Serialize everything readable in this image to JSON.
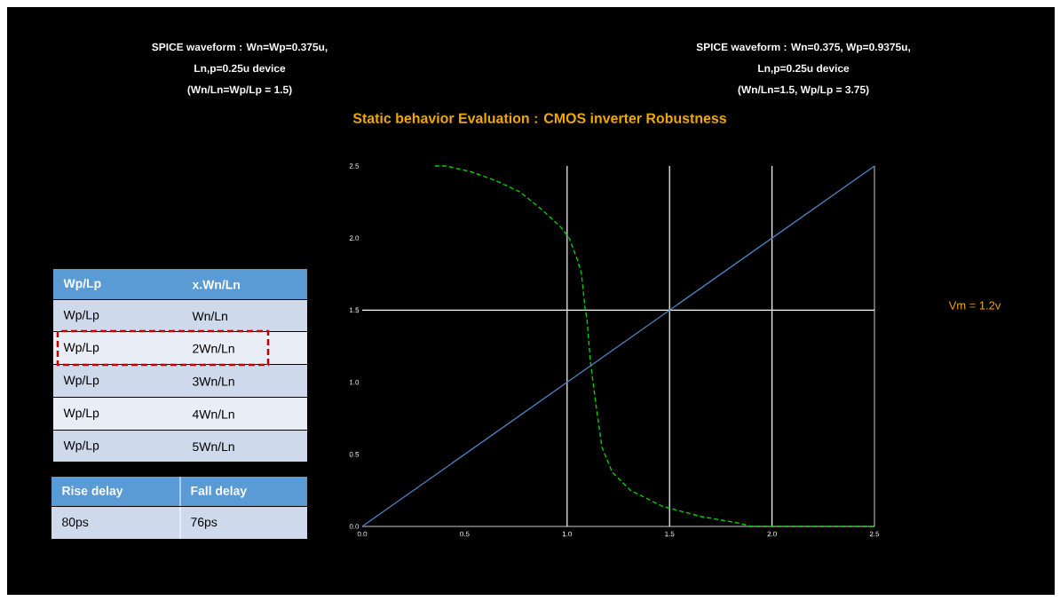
{
  "chart_data": {
    "type": "line",
    "title": "Static behavior Evaluation : CMOS inverter Robustness",
    "annotations": [
      "SPICE waveform : Wn=Wp=0.375u,",
      "Ln,p=0.25u device",
      "(Wn/Ln=Wp/Lp = 1.5)",
      "SPICE waveform : Wn=0.375, Wp=0.9375u,",
      "Ln,p=0.25u device",
      "(Wn/Ln=1.5, Wp/Lp = 3.75)",
      "Vm = 1.2v",
      "Wp/Lp",
      "x.Wn/Ln",
      "Wp/Lp",
      "Wn/Ln",
      "Wp/Lp",
      "2Wn/Ln",
      "Wp/Lp",
      "3Wn/Ln",
      "Wp/Lp",
      "4Wn/Ln",
      "Wp/Lp",
      "5Wn/Ln",
      "Rise delay",
      "Fall delay",
      "80ps",
      "76ps"
    ],
    "series": [
      {
        "color": "#00cc00",
        "line_style": "dashed",
        "x": [
          0.355,
          0.41,
          0.53,
          0.65,
          0.77,
          0.875,
          0.97,
          1.01,
          1.05,
          1.07,
          1.087,
          1.097,
          1.114,
          1.143,
          1.17,
          1.22,
          1.31,
          1.465,
          1.655,
          1.83,
          1.9,
          2.0,
          2.5
        ],
        "values": [
          2.5,
          2.5,
          2.46,
          2.4,
          2.32,
          2.2,
          2.075,
          2.0,
          1.85,
          1.755,
          1.52,
          1.435,
          1.14,
          0.82,
          0.55,
          0.376,
          0.25,
          0.14,
          0.068,
          0.025,
          0.0,
          0.0,
          0.0
        ]
      },
      {
        "color": "#4f81bd",
        "line_style": "solid",
        "x": [
          0,
          2.5
        ],
        "values": [
          0,
          2.5
        ]
      }
    ],
    "xlim": [
      0,
      2.5
    ],
    "ylim": [
      0,
      2.5
    ],
    "xticks": [
      {
        "value": 0,
        "label": "0.0"
      },
      0.5,
      {
        "value": 1,
        "label": "1.0"
      },
      1.5,
      {
        "value": 2,
        "label": "2.0"
      },
      2.5
    ],
    "yticks": [
      {
        "value": 0,
        "label": "0.0"
      },
      0.5,
      {
        "value": 1,
        "label": "1.0"
      },
      1.5,
      {
        "value": 2,
        "label": "2.0"
      },
      2.5
    ],
    "ref_lines": [
      {
        "axis": "x",
        "value": 1.0,
        "color": "#ffffff"
      },
      {
        "axis": "x",
        "value": 1.5,
        "color": "#ffffff"
      },
      {
        "axis": "x",
        "value": 2.0,
        "color": "#ffffff"
      },
      {
        "axis": "y",
        "value": 1.5,
        "color": "#ffffff"
      }
    ]
  }
}
